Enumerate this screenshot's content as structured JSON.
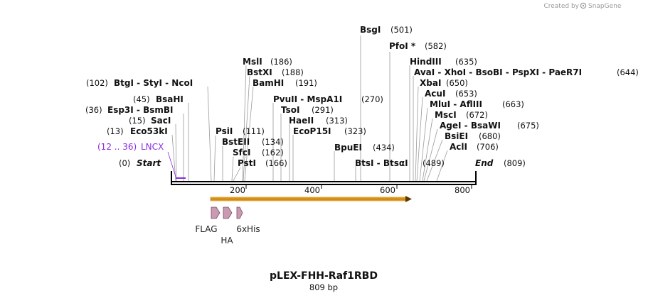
{
  "credit": {
    "text": "Created by",
    "brand": "SnapGene"
  },
  "map": {
    "title": "pLEX-FHH-Raf1RBD",
    "length_label": "809 bp",
    "length": 809,
    "ticks": [
      "200",
      "400",
      "600",
      "800"
    ],
    "start": {
      "label": "Start",
      "pos": "(0)"
    },
    "end": {
      "label": "End",
      "pos": "(809)"
    }
  },
  "features": {
    "lncx": {
      "range": "(12 .. 36)",
      "name": "LNCX",
      "color": "#8a2be2"
    },
    "orf": {
      "color": "#f5a623"
    },
    "tags": [
      {
        "name": "FLAG",
        "color": "#c99ab2"
      },
      {
        "name": "HA",
        "color": "#c99ab2"
      },
      {
        "name": "6xHis",
        "color": "#c99ab2"
      }
    ]
  },
  "sites": {
    "btsi": {
      "name": "BtsI",
      "sep": " - ",
      "name2": "BtsαI",
      "pos": "(489)"
    },
    "bpuei": {
      "name": "BpuEI",
      "pos": "(434)"
    },
    "ecop15i": {
      "name": "EcoP15I",
      "pos": "(323)"
    },
    "haeii": {
      "name": "HaeII",
      "pos": "(313)"
    },
    "tsoi": {
      "name": "TsoI",
      "pos": "(291)"
    },
    "pvuii": {
      "name": "PvuII",
      "sep": " - ",
      "name2": "MspA1I",
      "pos": "(270)"
    },
    "bsgi": {
      "name": "BsgI",
      "pos": "(501)"
    },
    "pfoi": {
      "name": "PfoI *",
      "pos": "(582)"
    },
    "hindiii": {
      "name": "HindIII",
      "pos": "(635)"
    },
    "avai": {
      "names": [
        "AvaI",
        "XhoI",
        "BsoBI",
        "PspXI",
        "PaeR7I"
      ],
      "sep": " - ",
      "pos": "(644)"
    },
    "xbai": {
      "name": "XbaI",
      "pos": "(650)"
    },
    "acui": {
      "name": "AcuI",
      "pos": "(653)"
    },
    "mlui": {
      "name": "MluI",
      "sep": " - ",
      "name2": "AflIII",
      "pos": "(663)"
    },
    "msci": {
      "name": "MscI",
      "pos": "(672)"
    },
    "agei": {
      "name": "AgeI",
      "sep": " - ",
      "name2": "BsaWI",
      "pos": "(675)"
    },
    "bsiei": {
      "name": "BsiEI",
      "pos": "(680)"
    },
    "acli": {
      "name": "AclI",
      "pos": "(706)"
    },
    "msli": {
      "name": "MslI",
      "pos": "(186)"
    },
    "bstxi": {
      "name": "BstXI",
      "pos": "(188)"
    },
    "bamhi": {
      "name": "BamHI",
      "pos": "(191)"
    },
    "psti": {
      "name": "PstI",
      "pos": "(166)"
    },
    "sfci": {
      "name": "SfcI",
      "pos": "(162)"
    },
    "bsteii": {
      "name": "BstEII",
      "pos": "(134)"
    },
    "psii": {
      "name": "PsiI",
      "pos": "(111)"
    },
    "btgi": {
      "pos": "(102)",
      "names": [
        "BtgI",
        "StyI",
        "NcoI"
      ],
      "sep": " - "
    },
    "bsahi": {
      "pos": "(45)",
      "name": "BsaHI"
    },
    "esp3i": {
      "pos": "(36)",
      "name": "Esp3I",
      "sep": " - ",
      "name2": "BsmBI"
    },
    "saci": {
      "pos": "(15)",
      "name": "SacI"
    },
    "eco53ki": {
      "pos": "(13)",
      "name": "Eco53kI"
    }
  }
}
